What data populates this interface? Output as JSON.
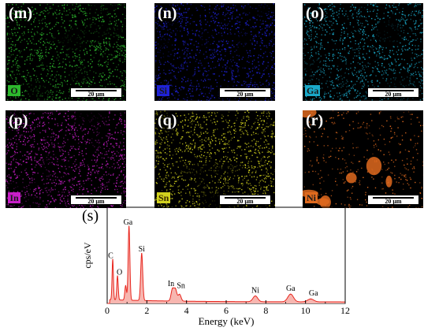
{
  "panels": [
    {
      "label": "(m)",
      "element": "O",
      "color": "#2db82d",
      "scale": "20 μm"
    },
    {
      "label": "(n)",
      "element": "Si",
      "color": "#1f22d6",
      "scale": "20 μm"
    },
    {
      "label": "(o)",
      "element": "Ga",
      "color": "#1aa8c8",
      "scale": "20 μm"
    },
    {
      "label": "(p)",
      "element": "In",
      "color": "#c81ec8",
      "scale": "20 μm"
    },
    {
      "label": "(q)",
      "element": "Sn",
      "color": "#d2d21e",
      "scale": "20 μm"
    },
    {
      "label": "(r)",
      "element": "Ni",
      "color": "#e06a1e",
      "scale": "20 μm"
    }
  ],
  "chart_data": {
    "type": "line",
    "panel_label": "(s)",
    "xlabel": "Energy (keV)",
    "ylabel": "cps/eV",
    "xlim": [
      0,
      12
    ],
    "ylim": [
      0,
      100
    ],
    "xticks": [
      0,
      2,
      4,
      6,
      8,
      10,
      12
    ],
    "line_color": "#e8261e",
    "fill_color": "#f7b6b0",
    "series": [
      {
        "values": []
      }
    ],
    "peaks": [
      {
        "element": "C",
        "x": 0.28,
        "y": 42
      },
      {
        "element": "O",
        "x": 0.52,
        "y": 25
      },
      {
        "element": "",
        "x": 0.93,
        "y": 15
      },
      {
        "element": "Ga",
        "x": 1.1,
        "y": 77
      },
      {
        "element": "Si",
        "x": 1.74,
        "y": 49
      },
      {
        "element": "In",
        "x": 3.29,
        "y": 12
      },
      {
        "element": "Sn",
        "x": 3.44,
        "y": 12
      },
      {
        "element": "",
        "x": 3.65,
        "y": 7
      },
      {
        "element": "Ni",
        "x": 7.47,
        "y": 6
      },
      {
        "element": "Ga",
        "x": 9.25,
        "y": 8
      },
      {
        "element": "Ga",
        "x": 10.26,
        "y": 3
      }
    ],
    "annotations": [
      {
        "text": "C",
        "x": 0.18,
        "y": 47
      },
      {
        "text": "O",
        "x": 0.62,
        "y": 30
      },
      {
        "text": "Ga",
        "x": 1.05,
        "y": 82
      },
      {
        "text": "Si",
        "x": 1.74,
        "y": 54
      },
      {
        "text": "In",
        "x": 3.22,
        "y": 18
      },
      {
        "text": "Sn",
        "x": 3.72,
        "y": 16
      },
      {
        "text": "Ni",
        "x": 7.47,
        "y": 11
      },
      {
        "text": "Ga",
        "x": 9.25,
        "y": 13
      },
      {
        "text": "Ga",
        "x": 10.4,
        "y": 8
      }
    ]
  }
}
